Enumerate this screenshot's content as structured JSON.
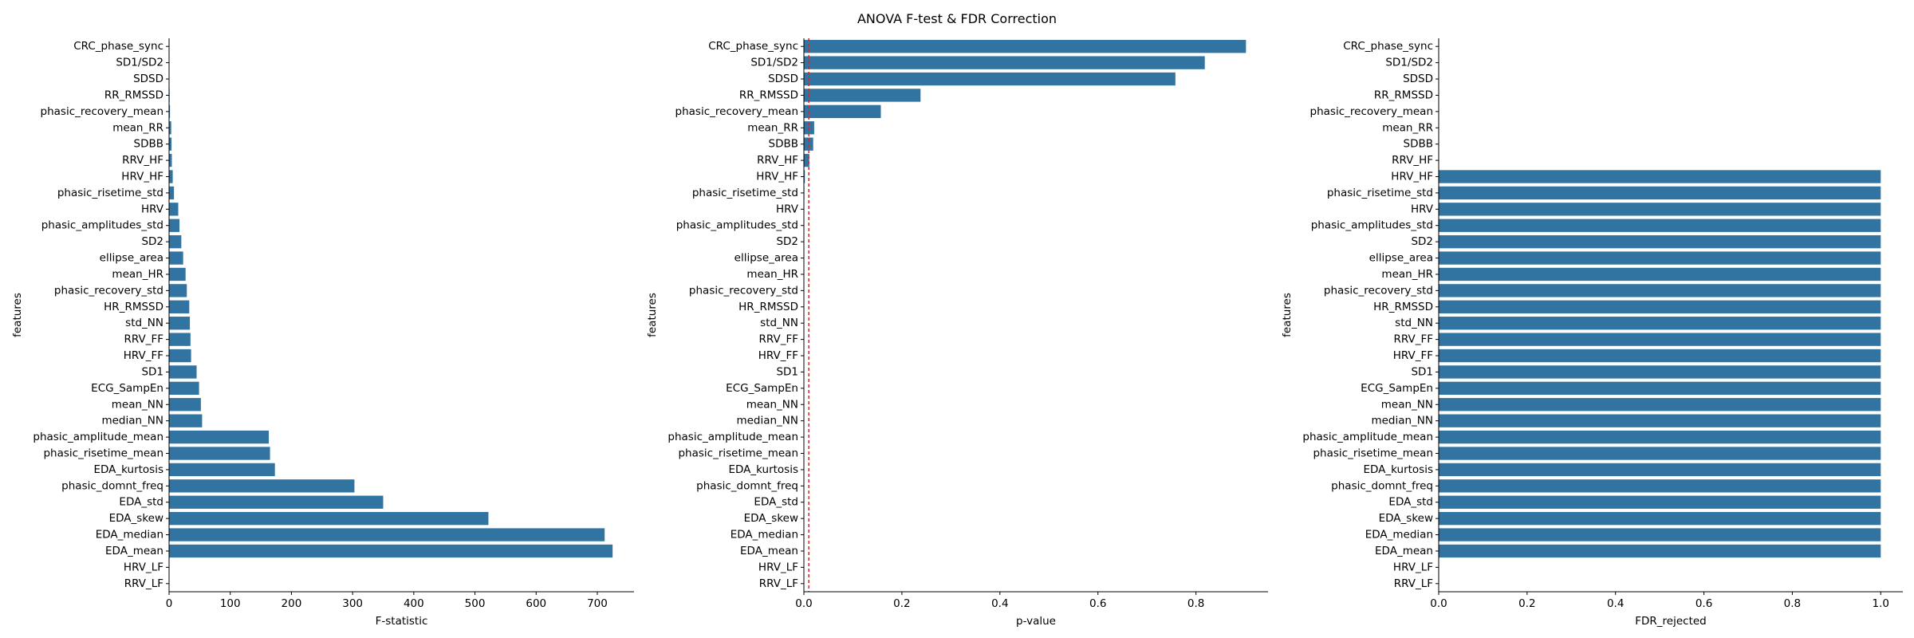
{
  "figure": {
    "title": "ANOVA F-test & FDR Correction",
    "bar_color": "#3274a1"
  },
  "chart_data": [
    {
      "type": "bar",
      "orientation": "horizontal",
      "xlabel": "F-statistic",
      "ylabel": "features",
      "categories": [
        "CRC_phase_sync",
        "SD1/SD2",
        "SDSD",
        "RR_RMSSD",
        "phasic_recovery_mean",
        "mean_RR",
        "SDBB",
        "RRV_HF",
        "HRV_HF",
        "phasic_risetime_std",
        "HRV",
        "phasic_amplitudes_std",
        "SD2",
        "ellipse_area",
        "mean_HR",
        "phasic_recovery_std",
        "HR_RMSSD",
        "std_NN",
        "RRV_FF",
        "HRV_FF",
        "SD1",
        "ECG_SampEn",
        "mean_NN",
        "median_NN",
        "phasic_amplitude_mean",
        "phasic_risetime_mean",
        "EDA_kurtosis",
        "phasic_domnt_freq",
        "EDA_std",
        "EDA_skew",
        "EDA_median",
        "EDA_mean",
        "HRV_LF",
        "RRV_LF"
      ],
      "values": [
        0.02,
        0.05,
        0.1,
        0.9,
        1.5,
        3.5,
        4,
        4.5,
        6,
        8,
        15,
        17,
        20,
        23,
        27,
        29,
        33,
        34,
        35,
        36,
        45,
        49,
        52,
        54,
        163,
        165,
        173,
        303,
        350,
        522,
        712,
        725,
        0,
        0
      ],
      "xlim": [
        0,
        760
      ],
      "xticks": [
        0,
        100,
        200,
        300,
        400,
        500,
        600,
        700
      ],
      "xtick_labels": [
        "0",
        "100",
        "200",
        "300",
        "400",
        "500",
        "600",
        "700"
      ],
      "grid": false
    },
    {
      "type": "bar",
      "orientation": "horizontal",
      "xlabel": "p-value",
      "ylabel": "features",
      "categories": [
        "CRC_phase_sync",
        "SD1/SD2",
        "SDSD",
        "RR_RMSSD",
        "phasic_recovery_mean",
        "mean_RR",
        "SDBB",
        "RRV_HF",
        "HRV_HF",
        "phasic_risetime_std",
        "HRV",
        "phasic_amplitudes_std",
        "SD2",
        "ellipse_area",
        "mean_HR",
        "phasic_recovery_std",
        "HR_RMSSD",
        "std_NN",
        "RRV_FF",
        "HRV_FF",
        "SD1",
        "ECG_SampEn",
        "mean_NN",
        "median_NN",
        "phasic_amplitude_mean",
        "phasic_risetime_mean",
        "EDA_kurtosis",
        "phasic_domnt_freq",
        "EDA_std",
        "EDA_skew",
        "EDA_median",
        "EDA_mean",
        "HRV_LF",
        "RRV_LF"
      ],
      "values": [
        0.902,
        0.818,
        0.758,
        0.238,
        0.157,
        0.021,
        0.019,
        0.011,
        0.002,
        0.001,
        0,
        0,
        0,
        0,
        0,
        0,
        0,
        0,
        0,
        0,
        0,
        0,
        0,
        0,
        0,
        0,
        0,
        0,
        0,
        0,
        0,
        0,
        0,
        0
      ],
      "xlim": [
        0,
        0.947
      ],
      "xticks": [
        0,
        0.2,
        0.4,
        0.6,
        0.8
      ],
      "xtick_labels": [
        "0.0",
        "0.2",
        "0.4",
        "0.6",
        "0.8"
      ],
      "reference_lines": [
        {
          "x": 0.01,
          "color": "#d62728",
          "style": "dashed"
        }
      ],
      "grid": false
    },
    {
      "type": "bar",
      "orientation": "horizontal",
      "xlabel": "FDR_rejected",
      "ylabel": "features",
      "categories": [
        "CRC_phase_sync",
        "SD1/SD2",
        "SDSD",
        "RR_RMSSD",
        "phasic_recovery_mean",
        "mean_RR",
        "SDBB",
        "RRV_HF",
        "HRV_HF",
        "phasic_risetime_std",
        "HRV",
        "phasic_amplitudes_std",
        "SD2",
        "ellipse_area",
        "mean_HR",
        "phasic_recovery_std",
        "HR_RMSSD",
        "std_NN",
        "RRV_FF",
        "HRV_FF",
        "SD1",
        "ECG_SampEn",
        "mean_NN",
        "median_NN",
        "phasic_amplitude_mean",
        "phasic_risetime_mean",
        "EDA_kurtosis",
        "phasic_domnt_freq",
        "EDA_std",
        "EDA_skew",
        "EDA_median",
        "EDA_mean",
        "HRV_LF",
        "RRV_LF"
      ],
      "values": [
        0,
        0,
        0,
        0,
        0,
        0,
        0,
        0,
        1,
        1,
        1,
        1,
        1,
        1,
        1,
        1,
        1,
        1,
        1,
        1,
        1,
        1,
        1,
        1,
        1,
        1,
        1,
        1,
        1,
        1,
        1,
        1,
        0,
        0
      ],
      "xlim": [
        0,
        1.05
      ],
      "xticks": [
        0,
        0.2,
        0.4,
        0.6,
        0.8,
        1.0
      ],
      "xtick_labels": [
        "0.0",
        "0.2",
        "0.4",
        "0.6",
        "0.8",
        "1.0"
      ],
      "grid": false
    }
  ]
}
